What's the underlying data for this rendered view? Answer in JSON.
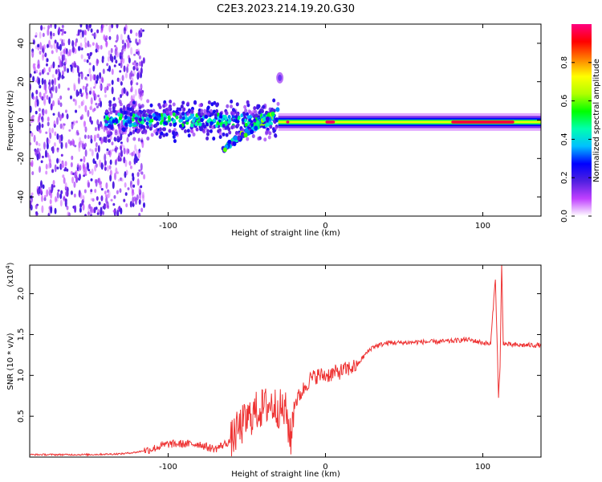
{
  "title": "C2E3.2023.214.19.20.G30",
  "colors": {
    "snr_line": "#ee3333",
    "spectrogram_background": "#ffffff"
  },
  "chart_data": [
    {
      "type": "heatmap",
      "name": "spectrogram",
      "xlabel": "Height of straight line (km)",
      "ylabel": "Frequency (Hz)",
      "xlim": [
        -188,
        137
      ],
      "ylim": [
        -50,
        50
      ],
      "x_ticks": [
        -100,
        0,
        100
      ],
      "x_tick_labels": [
        "-100",
        "0",
        "100"
      ],
      "y_ticks": [
        -40,
        -20,
        0,
        20,
        40
      ],
      "y_tick_labels": [
        "-40",
        "-20",
        "0",
        "20",
        "40"
      ],
      "colorbar": {
        "label": "Normalized spectral amplitude",
        "ticks": [
          0.0,
          0.2,
          0.4,
          0.6,
          0.8
        ],
        "tick_labels": [
          "0.0",
          "0.2",
          "0.4",
          "0.6",
          "0.8"
        ],
        "range": [
          0,
          1
        ],
        "colormap": [
          "#ffffff",
          "#c040ff",
          "#5020e0",
          "#0000ff",
          "#00c0ff",
          "#00ffb0",
          "#00ff00",
          "#b0ff00",
          "#ffff00",
          "#ff8000",
          "#ff0000",
          "#ff0080"
        ]
      },
      "features": [
        {
          "segment": "scattered noise",
          "x_range": [
            -188,
            -115
          ],
          "freq_range": [
            -50,
            50
          ],
          "amplitude": 0.1
        },
        {
          "segment": "broad signal",
          "x_range": [
            -140,
            -30
          ],
          "freq_center": 0,
          "freq_halfwidth": 8,
          "amplitude": 0.4
        },
        {
          "segment": "ascending trace",
          "x_range": [
            -65,
            -30
          ],
          "freq_start": -15,
          "freq_end": 5,
          "amplitude": 0.5
        },
        {
          "segment": "isolated tone",
          "x": -29,
          "freq": 22,
          "amplitude": 0.3
        },
        {
          "segment": "carrier",
          "x_range": [
            -30,
            137
          ],
          "freq_center": -1,
          "amplitude": 0.95
        }
      ]
    },
    {
      "type": "line",
      "name": "snr",
      "xlabel": "Height of straight line (km)",
      "ylabel": "SNR (10 * v/v)",
      "y_multiplier": "(x10",
      "y_multiplier_exp": "4",
      "y_multiplier_close": ")",
      "xlim": [
        -188,
        137
      ],
      "ylim": [
        0,
        2.35
      ],
      "x_ticks": [
        -100,
        0,
        100
      ],
      "x_tick_labels": [
        "-100",
        "0",
        "100"
      ],
      "y_ticks": [
        0.5,
        1.0,
        1.5,
        2.0
      ],
      "y_tick_labels": [
        "0.5",
        "1.0",
        "1.5",
        "2.0"
      ],
      "series": [
        {
          "name": "SNR",
          "x": [
            -188,
            -170,
            -150,
            -130,
            -120,
            -110,
            -100,
            -90,
            -80,
            -75,
            -70,
            -60,
            -55,
            -50,
            -45,
            -40,
            -35,
            -30,
            -25,
            -22,
            -20,
            -15,
            -10,
            -5,
            0,
            10,
            20,
            25,
            30,
            40,
            50,
            60,
            70,
            80,
            85,
            90,
            95,
            100,
            105,
            108,
            110,
            111,
            112,
            113,
            115,
            120,
            137
          ],
          "values": [
            0.03,
            0.03,
            0.03,
            0.04,
            0.06,
            0.1,
            0.16,
            0.16,
            0.16,
            0.12,
            0.1,
            0.2,
            0.35,
            0.45,
            0.55,
            0.6,
            0.65,
            0.6,
            0.55,
            0.2,
            0.65,
            0.8,
            0.95,
            1.0,
            1.0,
            1.05,
            1.12,
            1.25,
            1.35,
            1.4,
            1.4,
            1.41,
            1.41,
            1.42,
            1.43,
            1.44,
            1.42,
            1.4,
            1.38,
            2.2,
            0.75,
            1.1,
            2.35,
            1.4,
            1.38,
            1.37,
            1.37
          ]
        }
      ]
    }
  ]
}
